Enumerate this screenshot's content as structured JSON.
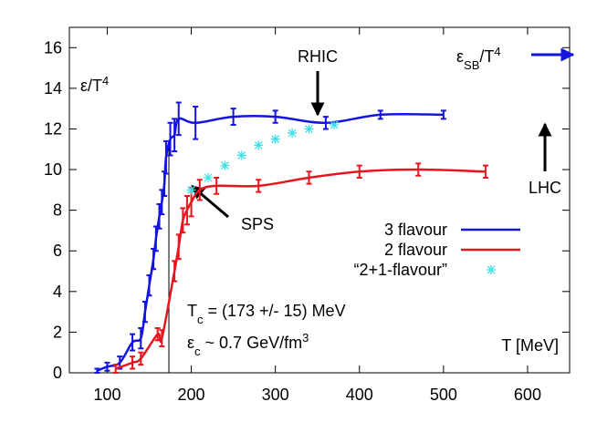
{
  "chart_data": {
    "type": "line",
    "y_label": {
      "text": "ε/T",
      "sup": "4"
    },
    "x_label": "T [MeV]",
    "xlim": [
      55,
      650
    ],
    "ylim": [
      0,
      17
    ],
    "xticks": [
      100,
      200,
      300,
      400,
      500,
      600
    ],
    "yticks": [
      0,
      2,
      4,
      6,
      8,
      10,
      12,
      14,
      16
    ],
    "legend": "right",
    "series": [
      {
        "name": "3 flavour",
        "color": "#1414e0",
        "marker": "errorbar",
        "x": [
          88,
          100,
          115,
          130,
          140,
          145,
          150,
          155,
          158,
          162,
          165,
          168,
          170,
          175,
          180,
          185,
          205,
          250,
          300,
          360,
          425,
          500
        ],
        "values": [
          0.1,
          0.3,
          0.5,
          1.5,
          1.7,
          3.0,
          4.3,
          5.6,
          6.6,
          7.7,
          8.4,
          9.3,
          10.6,
          11.5,
          11.7,
          12.5,
          12.3,
          12.6,
          12.6,
          12.3,
          12.7,
          12.7
        ],
        "errors": [
          0.1,
          0.2,
          0.3,
          0.4,
          0.5,
          0.5,
          0.5,
          0.5,
          0.6,
          0.6,
          0.6,
          0.6,
          0.8,
          0.8,
          0.8,
          0.8,
          0.8,
          0.4,
          0.3,
          0.3,
          0.2,
          0.2
        ]
      },
      {
        "name": "2 flavour",
        "color": "#e8141e",
        "marker": "errorbar",
        "x": [
          110,
          130,
          140,
          160,
          165,
          180,
          185,
          190,
          195,
          200,
          210,
          230,
          280,
          340,
          400,
          470,
          550
        ],
        "values": [
          0.2,
          0.5,
          0.7,
          1.9,
          1.7,
          5.0,
          6.2,
          7.5,
          8.0,
          8.4,
          9.0,
          9.2,
          9.2,
          9.6,
          9.9,
          10.0,
          9.9
        ],
        "errors": [
          0.2,
          0.3,
          0.3,
          0.3,
          0.4,
          0.5,
          0.6,
          0.6,
          0.7,
          0.7,
          0.5,
          0.4,
          0.3,
          0.3,
          0.3,
          0.3,
          0.3
        ]
      },
      {
        "name": "“2+1-flavour”",
        "color": "#40e0e8",
        "marker": "star",
        "x": [
          200,
          220,
          240,
          260,
          280,
          300,
          320,
          340,
          370
        ],
        "values": [
          9.0,
          9.6,
          10.2,
          10.7,
          11.2,
          11.5,
          11.8,
          12.0,
          12.2
        ]
      }
    ],
    "annotations": [
      {
        "text": "RHIC"
      },
      {
        "text": "LHC"
      },
      {
        "text": "SPS"
      },
      {
        "text": "ε",
        "sub": "SB",
        "rest": "/T",
        "sup": "4"
      },
      {
        "text": "T",
        "sub": "c",
        "rest": " = (173 +/- 15) MeV"
      },
      {
        "text": "ε",
        "sub": "c",
        "rest": " ~ 0.7 GeV/fm",
        "sup": "3"
      }
    ]
  }
}
